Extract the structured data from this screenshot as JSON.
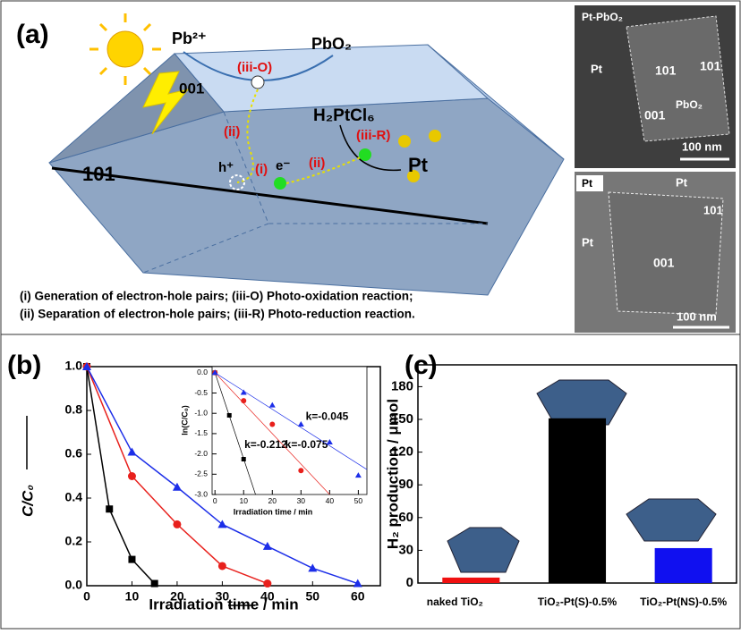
{
  "panel_a": {
    "label": "(a)",
    "diagram": {
      "pb": "Pb²⁺",
      "pbo2": "PbO₂",
      "iii_o": "(iii-O)",
      "face_001": "001",
      "h2ptcl6": "H₂PtCl₆",
      "ii_a": "(ii)",
      "iii_r": "(iii-R)",
      "face_101": "101",
      "hole": "h⁺",
      "i": "(i)",
      "electron": "e⁻",
      "ii_b": "(ii)",
      "pt": "Pt"
    },
    "legend": [
      "(i)  Generation of electron-hole pairs; (iii-O) Photo-oxidation reaction;",
      "(ii) Separation of electron-hole pairs; (iii-R) Photo-reduction reaction."
    ],
    "micrographs": [
      {
        "title": "Pt-PbO₂",
        "labels": [
          "Pt",
          "101",
          "101",
          "001",
          "PbO₂"
        ],
        "scale": "100 nm"
      },
      {
        "title": "Pt",
        "labels": [
          "Pt",
          "101",
          "Pt",
          "001"
        ],
        "scale": "100 nm"
      }
    ]
  },
  "chart_data": [
    {
      "type": "line",
      "panel_label": "(b)",
      "x_label": "Irradiation time / min",
      "y_label": "C/C₀",
      "xlim": [
        0,
        65
      ],
      "ylim": [
        0,
        1
      ],
      "xticks": [
        0,
        10,
        20,
        30,
        40,
        50,
        60
      ],
      "yticks": [
        {
          "value": 0,
          "label": "0.0"
        },
        0.2,
        0.4,
        0.6,
        0.8,
        {
          "value": 1,
          "label": "1.0"
        }
      ],
      "series": [
        {
          "color": "#000000",
          "marker": "square",
          "x": [
            0,
            5,
            10,
            15
          ],
          "values": [
            1,
            0.35,
            0.12,
            0.01
          ]
        },
        {
          "color": "#e8201c",
          "marker": "circle",
          "x": [
            0,
            10,
            20,
            30,
            40
          ],
          "values": [
            1,
            0.5,
            0.28,
            0.09,
            0.01
          ]
        },
        {
          "color": "#1c2ee8",
          "marker": "triangle",
          "x": [
            0,
            10,
            20,
            30,
            40,
            50,
            60
          ],
          "values": [
            1,
            0.61,
            0.45,
            0.28,
            0.18,
            0.08,
            0.01
          ]
        }
      ]
    },
    {
      "type": "scatter",
      "x_label": "Irradiation time / min",
      "y_label": "ln(C/C₀)",
      "xlim": [
        -1,
        53
      ],
      "ylim": [
        -3,
        0.15
      ],
      "xticks": [
        0,
        10,
        20,
        30,
        40,
        50
      ],
      "yticks": [
        {
          "value": 0,
          "label": "0.0"
        },
        -0.5,
        {
          "value": -1,
          "label": "-1.0"
        },
        -1.5,
        {
          "value": -2,
          "label": "-2.0"
        },
        -2.5,
        {
          "value": -3,
          "label": "-3.0"
        }
      ],
      "series": [
        {
          "color": "#000000",
          "marker": "square",
          "x": [
            0,
            5,
            10
          ],
          "values": [
            0,
            -1.05,
            -2.13
          ],
          "fit_k": -0.212,
          "fit_label": "k=-0.212"
        },
        {
          "color": "#e8201c",
          "marker": "circle",
          "x": [
            0,
            10,
            20,
            30
          ],
          "values": [
            0,
            -0.69,
            -1.27,
            -2.41
          ],
          "fit_k": -0.075,
          "fit_label": "k=-0.075"
        },
        {
          "color": "#1c2ee8",
          "marker": "triangle",
          "x": [
            0,
            10,
            20,
            30,
            40,
            50
          ],
          "values": [
            0,
            -0.49,
            -0.8,
            -1.27,
            -1.71,
            -2.53
          ],
          "fit_k": -0.045,
          "fit_label": "k=-0.045"
        }
      ]
    },
    {
      "type": "bar",
      "panel_label": "(c)",
      "y_label": "H₂ production / μmol",
      "categories": [
        "naked TiO₂",
        "TiO₂-Pt(S)-0.5%",
        "TiO₂-Pt(NS)-0.5%"
      ],
      "values": [
        5,
        151,
        32
      ],
      "colors": [
        "#f01010",
        "#000000",
        "#1010f0"
      ],
      "ylim": [
        0,
        200
      ],
      "yticks": [
        0,
        30,
        60,
        90,
        120,
        150,
        180
      ]
    }
  ]
}
